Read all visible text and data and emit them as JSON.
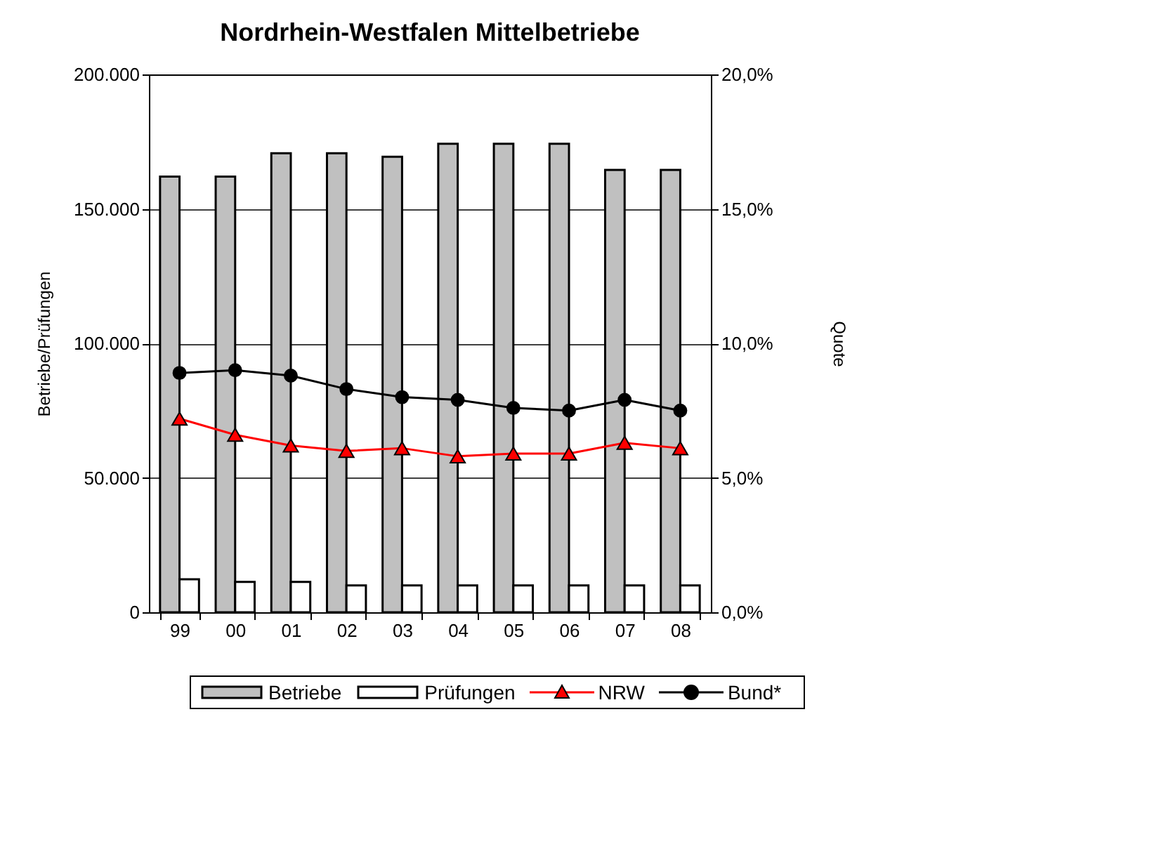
{
  "chart_data": {
    "type": "bar",
    "title": "Nordrhein-Westfalen Mittelbetriebe",
    "ylabel": "Betriebe/Prüfungen",
    "y2label": "Quote",
    "categories": [
      "99",
      "00",
      "01",
      "02",
      "03",
      "04",
      "05",
      "06",
      "07",
      "08"
    ],
    "series": [
      {
        "name": "Betriebe",
        "color": "#c0c0c0",
        "values": [
          162000,
          162000,
          170700,
          170700,
          169400,
          174200,
          174200,
          174200,
          164500,
          164500
        ]
      },
      {
        "name": "Prüfungen",
        "color": "#ffffff",
        "values": [
          12300,
          11300,
          11300,
          10000,
          10000,
          10000,
          10000,
          10000,
          10000,
          10000
        ]
      },
      {
        "name": "NRW",
        "type": "line",
        "axis": "y2",
        "color": "#ff0000",
        "marker": "triangle",
        "values": [
          7.2,
          6.6,
          6.2,
          6.0,
          6.1,
          5.8,
          5.9,
          5.9,
          6.3,
          6.1
        ]
      },
      {
        "name": "Bund*",
        "type": "line",
        "axis": "y2",
        "color": "#000000",
        "marker": "circle",
        "values": [
          8.9,
          9.0,
          8.8,
          8.3,
          8.0,
          7.9,
          7.6,
          7.5,
          7.9,
          7.5
        ]
      }
    ],
    "ylim": [
      0,
      200000
    ],
    "yticks": [
      0,
      {
        "value": 50000,
        "label": "50.000"
      },
      {
        "value": 100000,
        "label": "100.000"
      },
      {
        "value": 150000,
        "label": "150.000"
      },
      {
        "value": 200000,
        "label": "200.000"
      }
    ],
    "y2lim": [
      0,
      20
    ],
    "y2ticks": [
      {
        "value": 0,
        "label": "0,0%"
      },
      {
        "value": 5,
        "label": "5,0%"
      },
      {
        "value": 10,
        "label": "10,0%"
      },
      {
        "value": 15,
        "label": "15,0%"
      },
      {
        "value": 20,
        "label": "20,0%"
      }
    ],
    "grid": "y",
    "legend": "bottom"
  }
}
